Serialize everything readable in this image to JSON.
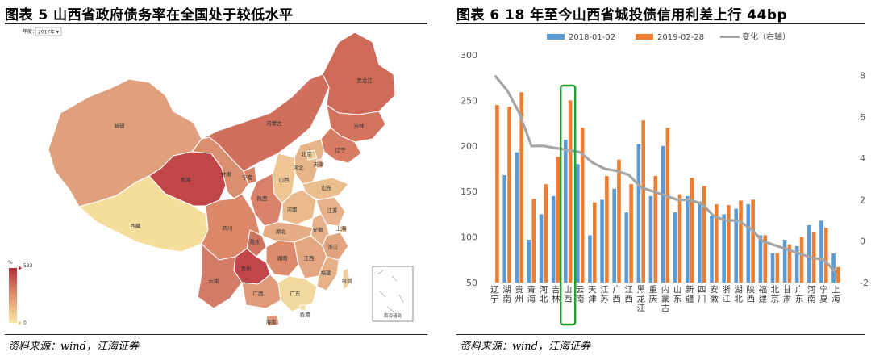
{
  "left": {
    "title": "图表 5 山西省政府债务率在全国处于较低水平",
    "source": "资料来源：wind，江海证券",
    "year_selector": {
      "label": "年度：",
      "value": "2017年"
    },
    "legend": {
      "unit": "%",
      "max": "533",
      "min": "0"
    },
    "inset_label": "南海诸岛",
    "provinces": [
      {
        "name": "新疆"
      },
      {
        "name": "西藏"
      },
      {
        "name": "青海"
      },
      {
        "name": "甘肃"
      },
      {
        "name": "内蒙古"
      },
      {
        "name": "黑龙江"
      },
      {
        "name": "吉林"
      },
      {
        "name": "辽宁"
      },
      {
        "name": "北京"
      },
      {
        "name": "天津"
      },
      {
        "name": "河北"
      },
      {
        "name": "宁夏"
      },
      {
        "name": "山西"
      },
      {
        "name": "山东"
      },
      {
        "name": "陕西"
      },
      {
        "name": "河南"
      },
      {
        "name": "江苏"
      },
      {
        "name": "安徽"
      },
      {
        "name": "湖北"
      },
      {
        "name": "上海"
      },
      {
        "name": "四川"
      },
      {
        "name": "重庆"
      },
      {
        "name": "浙江"
      },
      {
        "name": "湖南"
      },
      {
        "name": "江西"
      },
      {
        "name": "贵州"
      },
      {
        "name": "福建"
      },
      {
        "name": "云南"
      },
      {
        "name": "广西"
      },
      {
        "name": "广东"
      },
      {
        "name": "台湾"
      },
      {
        "name": "香港"
      },
      {
        "name": "海南"
      }
    ]
  },
  "right": {
    "title": "图表 6 18 年至今山西省城投债信用利差上行 44bp",
    "source": "资料来源：wind，江海证券",
    "colors": {
      "s1": "#5B9BD5",
      "s2": "#ED7D31",
      "line": "#A5A5A5",
      "highlight": "#1FA22E"
    },
    "chart_data": {
      "type": "bar",
      "categories": [
        "辽宁",
        "湖南",
        "贵州",
        "青海",
        "河北",
        "吉林",
        "山西",
        "云南",
        "天津",
        "江苏",
        "广西",
        "江西",
        "黑龙江",
        "重庆",
        "内蒙古",
        "山东",
        "新疆",
        "四川",
        "安徽",
        "浙江",
        "湖北",
        "陕西",
        "福建",
        "北京",
        "甘肃",
        "广东",
        "河南",
        "宁夏",
        "上海"
      ],
      "series": [
        {
          "name": "2018-01-02",
          "axis": "left",
          "values": [
            0,
            168,
            193,
            97,
            125,
            145,
            207,
            180,
            102,
            141,
            153,
            127,
            202,
            145,
            200,
            127,
            145,
            139,
            123,
            125,
            131,
            136,
            102,
            82,
            97,
            90,
            113,
            118,
            82
          ]
        },
        {
          "name": "2019-02-28",
          "axis": "left",
          "values": [
            245,
            243,
            259,
            142,
            158,
            188,
            250,
            220,
            138,
            167,
            185,
            158,
            228,
            167,
            220,
            147,
            165,
            156,
            136,
            135,
            140,
            141,
            102,
            82,
            92,
            100,
            105,
            110,
            67
          ]
        },
        {
          "name": "变化（右轴）",
          "axis": "right",
          "type": "line",
          "values": [
            8.0,
            7.3,
            6.2,
            4.6,
            4.6,
            4.5,
            4.4,
            4.3,
            3.8,
            3.5,
            3.4,
            3.2,
            2.6,
            2.4,
            2.2,
            2.0,
            2.0,
            1.8,
            1.2,
            1.0,
            1.0,
            0.6,
            0.0,
            -0.2,
            -0.4,
            -0.6,
            -0.8,
            -0.9,
            -1.5
          ]
        }
      ],
      "highlight": "山西",
      "ylim": [
        50,
        300
      ],
      "yticks": [
        50,
        100,
        150,
        200,
        250,
        300
      ],
      "ylim_right": [
        -2,
        9
      ],
      "yticks_right": [
        "-2",
        "0",
        "2",
        "4",
        "6",
        "8"
      ],
      "legend_position": "top"
    }
  }
}
